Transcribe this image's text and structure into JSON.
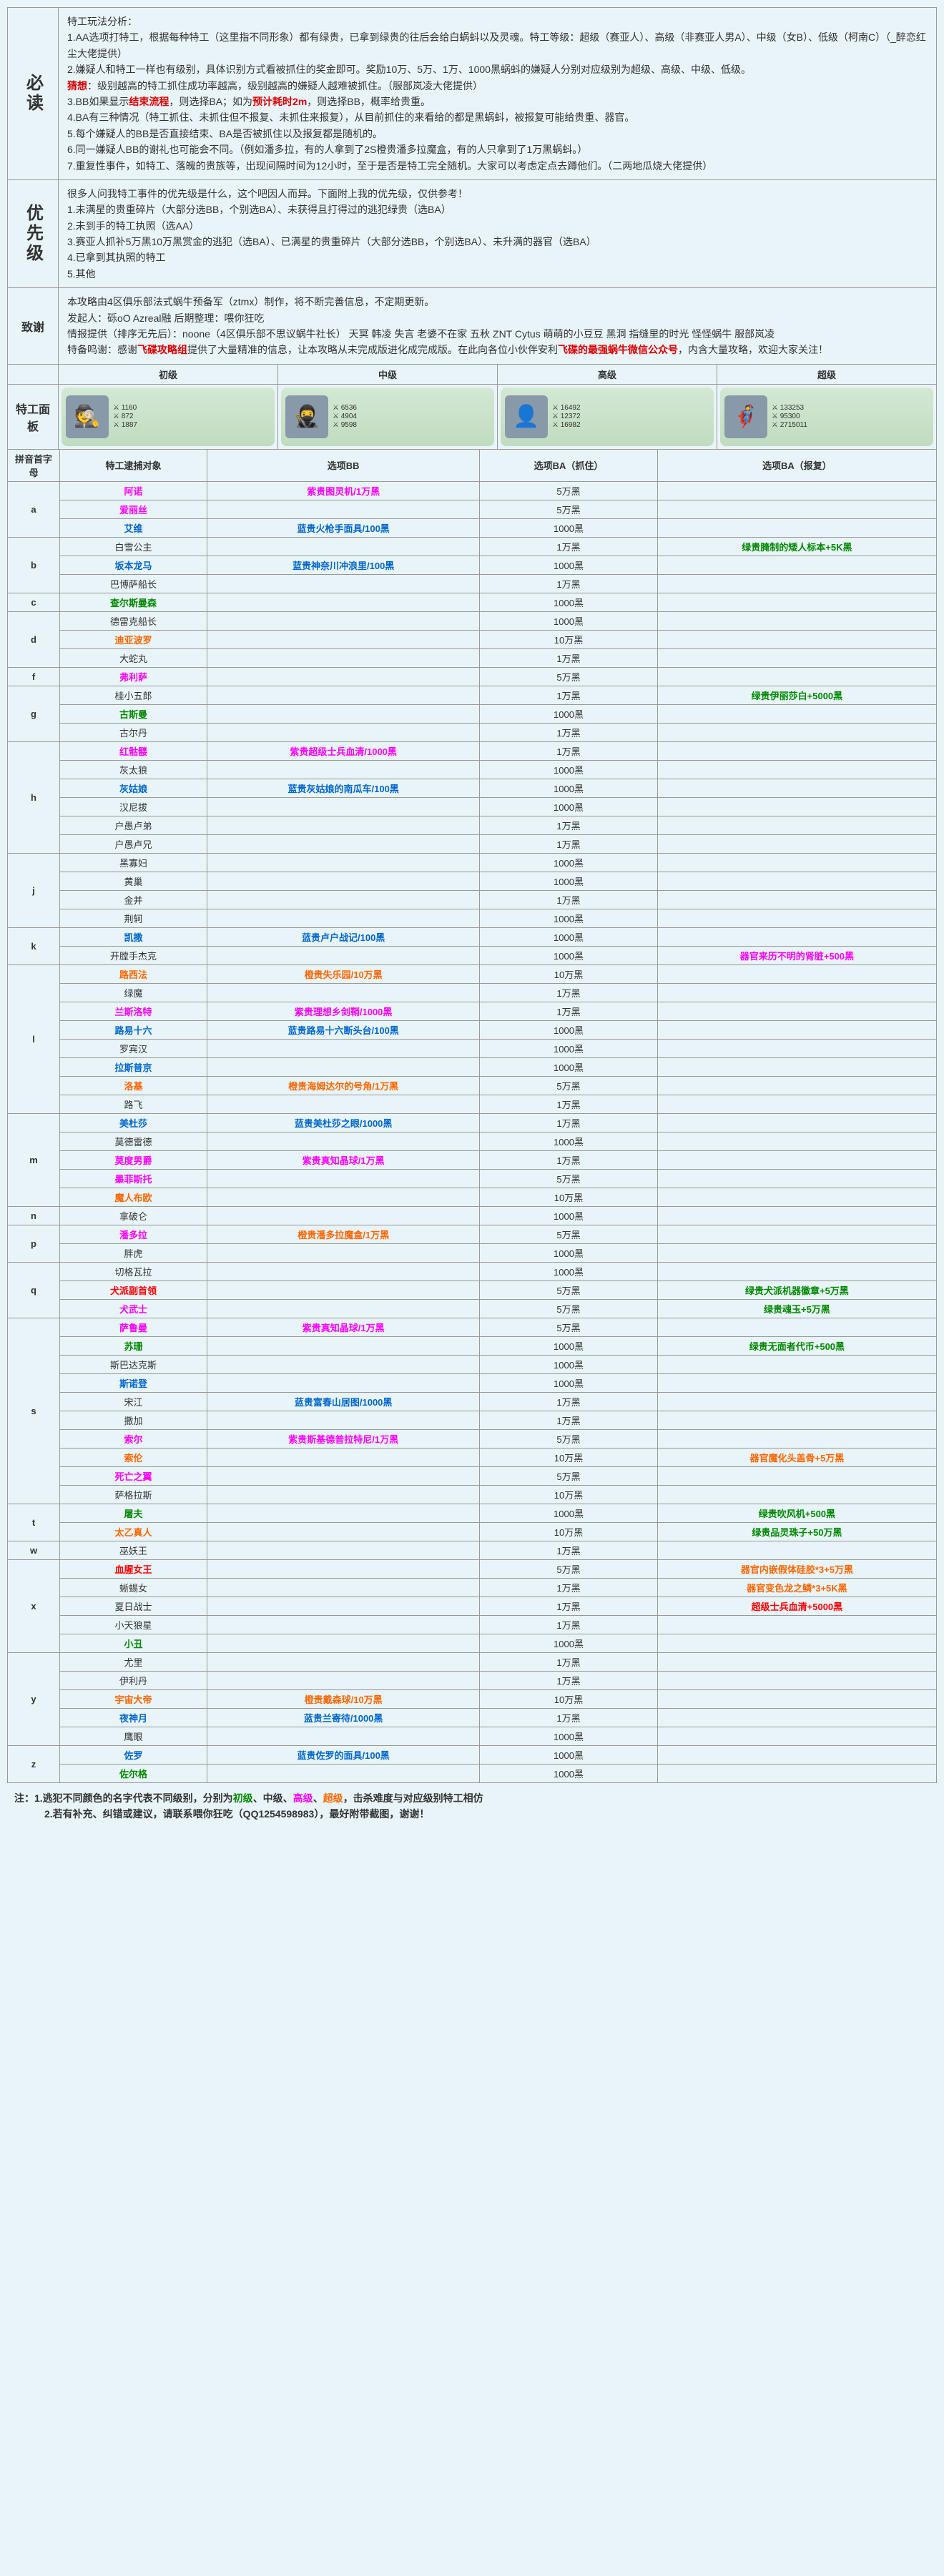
{
  "sections": {
    "must_read": {
      "label": "必读",
      "lines": [
        {
          "text": "特工玩法分析："
        },
        {
          "text": "1.AA选项打特工，根据每种特工（这里指不同形象）都有绿贵，已拿到绿贵的往后会给白蜗蚪以及灵魂。特工等级：超级（赛亚人）、高级（非赛亚人男A）、中级（女B）、低级（柯南C）（_醉恋红尘大佬提供）"
        },
        {
          "text": "2.嫌疑人和特工一样也有级别，具体识别方式看被抓住的奖金即可。奖励10万、5万、1万、1000黑蜗蚪的嫌疑人分别对应级别为超级、高级、中级、低级。"
        },
        {
          "html": "<span class='red-bold'>猜想</span>：级别越高的特工抓住成功率越高，级别越高的嫌疑人越难被抓住。（服部岚凌大佬提供）"
        },
        {
          "html": "3.BB如果显示<span class='red-bold'>结束流程</span>，则选择BA；如为<span class='red-bold'>预计耗时2m</span>，则选择BB，概率给贵重。"
        },
        {
          "text": "4.BA有三种情况（特工抓住、未抓住但不报复、未抓住来报复），从目前抓住的来看给的都是黑蜗蚪，被报复可能给贵重、器官。"
        },
        {
          "text": "5.每个嫌疑人的BB是否直接结束、BA是否被抓住以及报复都是随机的。"
        },
        {
          "text": "6.同一嫌疑人BB的谢礼也可能会不同。（例如潘多拉，有的人拿到了2S橙贵潘多拉魔盒，有的人只拿到了1万黑蜗蚪。）"
        },
        {
          "text": "7.重复性事件，如特工、落魄的贵族等，出现间隔时间为12小时，至于是否是特工完全随机。大家可以考虑定点去蹲他们。（二两地瓜烧大佬提供）"
        }
      ]
    },
    "priority": {
      "label": "优先级",
      "lines": [
        {
          "text": "很多人问我特工事件的优先级是什么，这个吧因人而异。下面附上我的优先级，仅供参考！"
        },
        {
          "text": "1.未满星的贵重碎片（大部分选BB，个别选BA）、未获得且打得过的逃犯绿贵（选BA）"
        },
        {
          "text": "2.未到手的特工执照（选AA）"
        },
        {
          "text": "3.赛亚人抓补5万黑10万黑赏金的逃犯（选BA）、已满星的贵重碎片（大部分选BB，个别选BA）、未升满的器官（选BA）"
        },
        {
          "text": "4.已拿到其执照的特工"
        },
        {
          "text": "5.其他"
        }
      ]
    },
    "thanks": {
      "label": "致谢",
      "lines": [
        {
          "text": "本攻略由4区俱乐部法式蜗牛预备军（ztmx）制作，将不断完善信息，不定期更新。"
        },
        {
          "text": "发起人：砾oO  Azreal融        后期整理：喂你狂吃"
        },
        {
          "text": "情报提供（排序无先后）：noone（4区俱乐部不思议蜗牛社长）  天冥  韩凌  失言   老婆不在家   五秋   ZNT  Cytus  萌萌的小豆豆   黑洞   指缝里的时光   怪怪蜗牛   服部岚凌"
        },
        {
          "html": "特备鸣谢：感谢<span class='red-bold'>飞碟攻略组</span>提供了大量精准的信息，让本攻略从未完成版进化成完成版。在此向各位小伙伴安利<span class='red-bold'>飞碟的最强蜗牛微信公众号</span>，内含大量攻略，欢迎大家关注！"
        }
      ]
    }
  },
  "panels": {
    "label": "特工面板",
    "headers": [
      "初级",
      "中级",
      "高级",
      "超级"
    ],
    "cards": [
      {
        "avatar": "🕵️",
        "stats": [
          "1160",
          "872",
          "1887"
        ]
      },
      {
        "avatar": "🥷",
        "stats": [
          "6536",
          "4904",
          "9598"
        ]
      },
      {
        "avatar": "👤",
        "stats": [
          "16492",
          "12372",
          "16982"
        ]
      },
      {
        "avatar": "🦸",
        "stats": [
          "133253",
          "95300",
          "2715011"
        ]
      }
    ]
  },
  "table": {
    "headers": [
      "拼音首字母",
      "特工逮捕对象",
      "选项BB",
      "选项BA（抓住）",
      "选项BA（报复）"
    ],
    "rows": [
      {
        "l": "a",
        "n": "阿诺",
        "c": "pink",
        "bb": {
          "t": "紫贵图灵机/1万黑",
          "c": "pink"
        },
        "ba1": "5万黑",
        "ba2": ""
      },
      {
        "l": "",
        "n": "爱丽丝",
        "c": "pink",
        "bb": {
          "t": ""
        },
        "ba1": "5万黑",
        "ba2": ""
      },
      {
        "l": "",
        "n": "艾维",
        "c": "blue",
        "bb": {
          "t": "蓝贵火枪手面具/100黑",
          "c": "blue"
        },
        "ba1": "1000黑",
        "ba2": ""
      },
      {
        "l": "b",
        "n": "白雪公主",
        "c": "",
        "bb": {
          "t": ""
        },
        "ba1": "1万黑",
        "ba2": {
          "t": "绿贵腌制的矮人标本+5K黑",
          "c": "green"
        }
      },
      {
        "l": "",
        "n": "坂本龙马",
        "c": "blue",
        "bb": {
          "t": "蓝贵神奈川冲浪里/100黑",
          "c": "blue"
        },
        "ba1": "1000黑",
        "ba2": ""
      },
      {
        "l": "",
        "n": "巴博萨船长",
        "c": "",
        "bb": {
          "t": ""
        },
        "ba1": "1万黑",
        "ba2": ""
      },
      {
        "l": "c",
        "n": "查尔斯曼森",
        "c": "green",
        "bb": {
          "t": ""
        },
        "ba1": "1000黑",
        "ba2": ""
      },
      {
        "l": "d",
        "n": "德雷克船长",
        "c": "",
        "bb": {
          "t": ""
        },
        "ba1": "1000黑",
        "ba2": ""
      },
      {
        "l": "",
        "n": "迪亚波罗",
        "c": "orange",
        "bb": {
          "t": ""
        },
        "ba1": "10万黑",
        "ba2": ""
      },
      {
        "l": "",
        "n": "大蛇丸",
        "c": "",
        "bb": {
          "t": ""
        },
        "ba1": "1万黑",
        "ba2": ""
      },
      {
        "l": "f",
        "n": "弗利萨",
        "c": "pink",
        "bb": {
          "t": ""
        },
        "ba1": "5万黑",
        "ba2": ""
      },
      {
        "l": "g",
        "n": "桂小五郎",
        "c": "",
        "bb": {
          "t": ""
        },
        "ba1": "1万黑",
        "ba2": {
          "t": "绿贵伊丽莎白+5000黑",
          "c": "green"
        }
      },
      {
        "l": "",
        "n": "古斯曼",
        "c": "green",
        "bb": {
          "t": ""
        },
        "ba1": "1000黑",
        "ba2": ""
      },
      {
        "l": "",
        "n": "古尔丹",
        "c": "",
        "bb": {
          "t": ""
        },
        "ba1": "1万黑",
        "ba2": ""
      },
      {
        "l": "h",
        "n": "红骷髅",
        "c": "pink",
        "bb": {
          "t": "紫贵超级士兵血清/1000黑",
          "c": "pink"
        },
        "ba1": "1万黑",
        "ba2": ""
      },
      {
        "l": "",
        "n": "灰太狼",
        "c": "",
        "bb": {
          "t": ""
        },
        "ba1": "1000黑",
        "ba2": ""
      },
      {
        "l": "",
        "n": "灰姑娘",
        "c": "blue",
        "bb": {
          "t": "蓝贵灰姑娘的南瓜车/100黑",
          "c": "blue"
        },
        "ba1": "1000黑",
        "ba2": ""
      },
      {
        "l": "",
        "n": "汉尼拔",
        "c": "",
        "bb": {
          "t": ""
        },
        "ba1": "1000黑",
        "ba2": ""
      },
      {
        "l": "",
        "n": "户愚卢弟",
        "c": "",
        "bb": {
          "t": ""
        },
        "ba1": "1万黑",
        "ba2": ""
      },
      {
        "l": "",
        "n": "户愚卢兄",
        "c": "",
        "bb": {
          "t": ""
        },
        "ba1": "1万黑",
        "ba2": ""
      },
      {
        "l": "j",
        "n": "黑寡妇",
        "c": "",
        "bb": {
          "t": ""
        },
        "ba1": "1000黑",
        "ba2": ""
      },
      {
        "l": "",
        "n": "黄巢",
        "c": "",
        "bb": {
          "t": ""
        },
        "ba1": "1000黑",
        "ba2": ""
      },
      {
        "l": "",
        "n": "金并",
        "c": "",
        "bb": {
          "t": ""
        },
        "ba1": "1万黑",
        "ba2": ""
      },
      {
        "l": "",
        "n": "荆轲",
        "c": "",
        "bb": {
          "t": ""
        },
        "ba1": "1000黑",
        "ba2": ""
      },
      {
        "l": "k",
        "n": "凯撒",
        "c": "blue",
        "bb": {
          "t": "蓝贵卢户战记/100黑",
          "c": "blue"
        },
        "ba1": "1000黑",
        "ba2": ""
      },
      {
        "l": "",
        "n": "开膛手杰克",
        "c": "",
        "bb": {
          "t": ""
        },
        "ba1": "1000黑",
        "ba2": {
          "t": "器官来历不明的肾脏+500黑",
          "c": "pink"
        }
      },
      {
        "l": "l",
        "n": "路西法",
        "c": "orange",
        "bb": {
          "t": "橙贵失乐园/10万黑",
          "c": "orange"
        },
        "ba1": "10万黑",
        "ba2": ""
      },
      {
        "l": "",
        "n": "绿魔",
        "c": "",
        "bb": {
          "t": ""
        },
        "ba1": "1万黑",
        "ba2": ""
      },
      {
        "l": "",
        "n": "兰斯洛特",
        "c": "pink",
        "bb": {
          "t": "紫贵理想乡剑鞘/1000黑",
          "c": "pink"
        },
        "ba1": "1万黑",
        "ba2": ""
      },
      {
        "l": "",
        "n": "路易十六",
        "c": "blue",
        "bb": {
          "t": "蓝贵路易十六断头台/100黑",
          "c": "blue"
        },
        "ba1": "1000黑",
        "ba2": ""
      },
      {
        "l": "",
        "n": "罗宾汉",
        "c": "",
        "bb": {
          "t": ""
        },
        "ba1": "1000黑",
        "ba2": ""
      },
      {
        "l": "",
        "n": "拉斯普京",
        "c": "blue",
        "bb": {
          "t": ""
        },
        "ba1": "1000黑",
        "ba2": ""
      },
      {
        "l": "",
        "n": "洛基",
        "c": "orange",
        "bb": {
          "t": "橙贵海姆达尔的号角/1万黑",
          "c": "orange"
        },
        "ba1": "5万黑",
        "ba2": ""
      },
      {
        "l": "",
        "n": "路飞",
        "c": "",
        "bb": {
          "t": ""
        },
        "ba1": "1万黑",
        "ba2": ""
      },
      {
        "l": "m",
        "n": "美杜莎",
        "c": "blue",
        "bb": {
          "t": "蓝贵美杜莎之眼/1000黑",
          "c": "blue"
        },
        "ba1": "1万黑",
        "ba2": ""
      },
      {
        "l": "",
        "n": "莫德雷德",
        "c": "",
        "bb": {
          "t": ""
        },
        "ba1": "1000黑",
        "ba2": ""
      },
      {
        "l": "",
        "n": "莫度男爵",
        "c": "pink",
        "bb": {
          "t": "紫贵真知晶球/1万黑",
          "c": "pink"
        },
        "ba1": "1万黑",
        "ba2": ""
      },
      {
        "l": "",
        "n": "墨菲斯托",
        "c": "pink",
        "bb": {
          "t": ""
        },
        "ba1": "5万黑",
        "ba2": ""
      },
      {
        "l": "",
        "n": "魔人布欧",
        "c": "orange",
        "bb": {
          "t": ""
        },
        "ba1": "10万黑",
        "ba2": ""
      },
      {
        "l": "n",
        "n": "拿破仑",
        "c": "",
        "bb": {
          "t": ""
        },
        "ba1": "1000黑",
        "ba2": ""
      },
      {
        "l": "p",
        "n": "潘多拉",
        "c": "pink",
        "bb": {
          "t": "橙贵潘多拉魔盒/1万黑",
          "c": "orange"
        },
        "ba1": "5万黑",
        "ba2": ""
      },
      {
        "l": "",
        "n": "胖虎",
        "c": "",
        "bb": {
          "t": ""
        },
        "ba1": "1000黑",
        "ba2": ""
      },
      {
        "l": "q",
        "n": "切格瓦拉",
        "c": "",
        "bb": {
          "t": ""
        },
        "ba1": "1000黑",
        "ba2": ""
      },
      {
        "l": "",
        "n": "犬派副首领",
        "c": "red",
        "bb": {
          "t": ""
        },
        "ba1": "5万黑",
        "ba2": {
          "t": "绿贵犬派机器徽章+5万黑",
          "c": "green"
        }
      },
      {
        "l": "",
        "n": "犬武士",
        "c": "pink",
        "bb": {
          "t": ""
        },
        "ba1": "5万黑",
        "ba2": {
          "t": "绿贵魂玉+5万黑",
          "c": "green"
        }
      },
      {
        "l": "s",
        "n": "萨鲁曼",
        "c": "pink",
        "bb": {
          "t": "紫贵真知晶球/1万黑",
          "c": "pink"
        },
        "ba1": "5万黑",
        "ba2": ""
      },
      {
        "l": "",
        "n": "苏珊",
        "c": "green",
        "bb": {
          "t": ""
        },
        "ba1": "1000黑",
        "ba2": {
          "t": "绿贵无面者代币+500黑",
          "c": "green"
        }
      },
      {
        "l": "",
        "n": "斯巴达克斯",
        "c": "",
        "bb": {
          "t": ""
        },
        "ba1": "1000黑",
        "ba2": ""
      },
      {
        "l": "",
        "n": "斯诺登",
        "c": "blue",
        "bb": {
          "t": ""
        },
        "ba1": "1000黑",
        "ba2": ""
      },
      {
        "l": "",
        "n": "宋江",
        "c": "",
        "bb": {
          "t": "蓝贵富春山居图/1000黑",
          "c": "blue"
        },
        "ba1": "1万黑",
        "ba2": ""
      },
      {
        "l": "",
        "n": "撒加",
        "c": "",
        "bb": {
          "t": ""
        },
        "ba1": "1万黑",
        "ba2": ""
      },
      {
        "l": "",
        "n": "索尔",
        "c": "pink",
        "bb": {
          "t": "紫贵斯基德普拉特尼/1万黑",
          "c": "pink"
        },
        "ba1": "5万黑",
        "ba2": ""
      },
      {
        "l": "",
        "n": "索伦",
        "c": "orange",
        "bb": {
          "t": ""
        },
        "ba1": "10万黑",
        "ba2": {
          "t": "器官魔化头盖骨+5万黑",
          "c": "orange"
        }
      },
      {
        "l": "",
        "n": "死亡之翼",
        "c": "pink",
        "bb": {
          "t": ""
        },
        "ba1": "5万黑",
        "ba2": ""
      },
      {
        "l": "",
        "n": "萨格拉斯",
        "c": "",
        "bb": {
          "t": ""
        },
        "ba1": "10万黑",
        "ba2": ""
      },
      {
        "l": "t",
        "n": "屠夫",
        "c": "green",
        "bb": {
          "t": ""
        },
        "ba1": "1000黑",
        "ba2": {
          "t": "绿贵吹风机+500黑",
          "c": "green"
        }
      },
      {
        "l": "",
        "n": "太乙真人",
        "c": "orange",
        "bb": {
          "t": ""
        },
        "ba1": "10万黑",
        "ba2": {
          "t": "绿贵品灵珠子+50万黑",
          "c": "green"
        }
      },
      {
        "l": "w",
        "n": "巫妖王",
        "c": "",
        "bb": {
          "t": ""
        },
        "ba1": "1万黑",
        "ba2": ""
      },
      {
        "l": "x",
        "n": "血腥女王",
        "c": "red",
        "bb": {
          "t": ""
        },
        "ba1": "5万黑",
        "ba2": {
          "t": "器官内嵌假体硅胶*3+5万黑",
          "c": "orange"
        }
      },
      {
        "l": "",
        "n": "蜥蜴女",
        "c": "",
        "bb": {
          "t": ""
        },
        "ba1": "1万黑",
        "ba2": {
          "t": "器官变色龙之鳞*3+5K黑",
          "c": "orange"
        }
      },
      {
        "l": "",
        "n": "夏日战士",
        "c": "",
        "bb": {
          "t": ""
        },
        "ba1": "1万黑",
        "ba2": {
          "t": "超级士兵血清+5000黑",
          "c": "red"
        }
      },
      {
        "l": "",
        "n": "小天狼星",
        "c": "",
        "bb": {
          "t": ""
        },
        "ba1": "1万黑",
        "ba2": ""
      },
      {
        "l": "",
        "n": "小丑",
        "c": "green",
        "bb": {
          "t": ""
        },
        "ba1": "1000黑",
        "ba2": ""
      },
      {
        "l": "y",
        "n": "尤里",
        "c": "",
        "bb": {
          "t": ""
        },
        "ba1": "1万黑",
        "ba2": ""
      },
      {
        "l": "",
        "n": "伊利丹",
        "c": "",
        "bb": {
          "t": ""
        },
        "ba1": "1万黑",
        "ba2": ""
      },
      {
        "l": "",
        "n": "宇宙大帝",
        "c": "orange",
        "bb": {
          "t": "橙贵戴森球/10万黑",
          "c": "orange"
        },
        "ba1": "10万黑",
        "ba2": ""
      },
      {
        "l": "",
        "n": "夜神月",
        "c": "blue",
        "bb": {
          "t": "蓝贵兰寄待/1000黑",
          "c": "blue"
        },
        "ba1": "1万黑",
        "ba2": ""
      },
      {
        "l": "",
        "n": "鹰眼",
        "c": "",
        "bb": {
          "t": ""
        },
        "ba1": "1000黑",
        "ba2": ""
      },
      {
        "l": "z",
        "n": "佐罗",
        "c": "blue",
        "bb": {
          "t": "蓝贵佐罗的面具/100黑",
          "c": "blue"
        },
        "ba1": "1000黑",
        "ba2": ""
      },
      {
        "l": "",
        "n": "佐尔格",
        "c": "green",
        "bb": {
          "t": ""
        },
        "ba1": "1000黑",
        "ba2": ""
      }
    ]
  },
  "footnote": {
    "line1_prefix": "注：1.逃犯不同颜色的名字代表不同级别，分别为",
    "line1_levels": [
      "初级",
      "、中级、",
      "高级",
      "、",
      "超级"
    ],
    "line1_suffix": "，击杀难度与对应级别特工相仿",
    "line2": "2.若有补充、纠错或建议，请联系喂你狂吃（QQ1254598983），最好附带截图，谢谢！"
  }
}
